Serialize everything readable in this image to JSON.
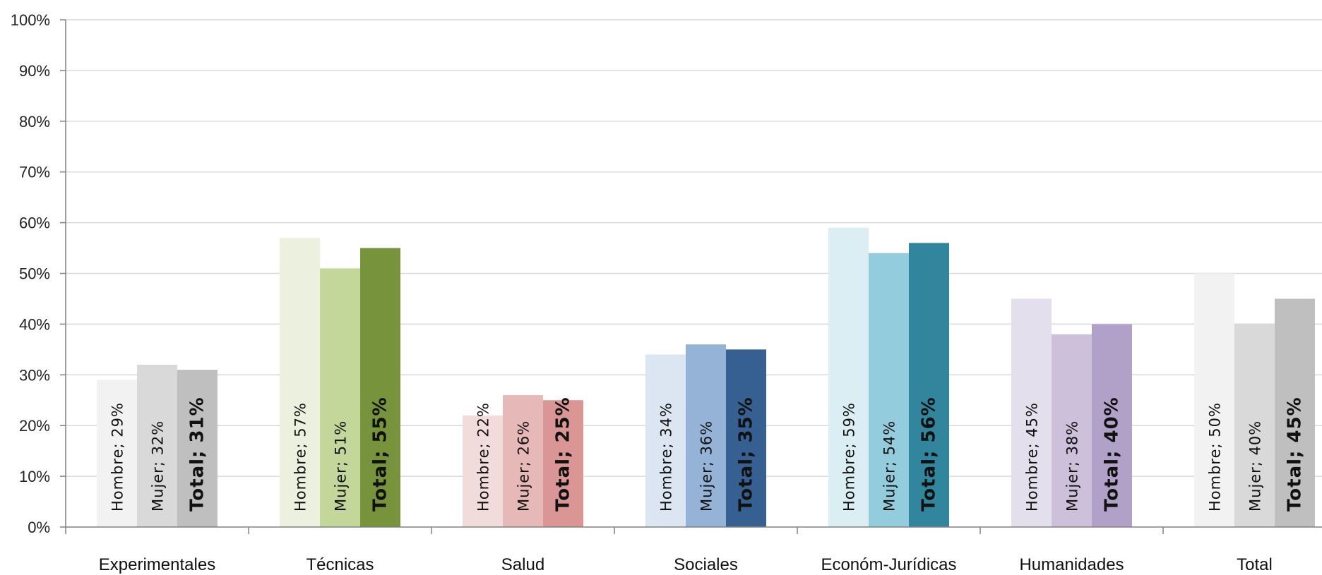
{
  "chart_data": {
    "type": "bar",
    "categories": [
      "Experimentales",
      "Técnicas",
      "Salud",
      "Sociales",
      "Económ-Jurídicas",
      "Humanidades",
      "Total"
    ],
    "series": [
      {
        "name": "Hombre",
        "values": [
          29,
          57,
          22,
          34,
          59,
          45,
          50
        ]
      },
      {
        "name": "Mujer",
        "values": [
          32,
          51,
          26,
          36,
          54,
          38,
          40
        ]
      },
      {
        "name": "Total",
        "values": [
          31,
          55,
          25,
          35,
          56,
          40,
          45
        ]
      }
    ],
    "bar_labels": [
      [
        "Hombre; 29%",
        "Mujer; 32%",
        "Total; 31%"
      ],
      [
        "Hombre; 57%",
        "Mujer; 51%",
        "Total; 55%"
      ],
      [
        "Hombre; 22%",
        "Mujer; 26%",
        "Total; 25%"
      ],
      [
        "Hombre; 34%",
        "Mujer; 36%",
        "Total; 35%"
      ],
      [
        "Hombre; 59%",
        "Mujer; 54%",
        "Total; 56%"
      ],
      [
        "Hombre; 45%",
        "Mujer; 38%",
        "Total; 40%"
      ],
      [
        "Hombre; 50%",
        "Mujer; 40%",
        "Total; 45%"
      ]
    ],
    "y_ticks": [
      "0%",
      "10%",
      "20%",
      "30%",
      "40%",
      "50%",
      "60%",
      "70%",
      "80%",
      "90%",
      "100%"
    ],
    "ylim": [
      0,
      100
    ],
    "grid": true,
    "colors": [
      [
        "#f2f2f2",
        "#d9d9d9",
        "#bfbfbf"
      ],
      [
        "#ebf1de",
        "#c4d79b",
        "#77933c"
      ],
      [
        "#f2dcdb",
        "#e6b9b8",
        "#d99694"
      ],
      [
        "#dce6f2",
        "#95b3d7",
        "#366092"
      ],
      [
        "#daeef3",
        "#93cddd",
        "#31859c"
      ],
      [
        "#e4dfec",
        "#ccc0da",
        "#b1a0c7"
      ],
      [
        "#f2f2f2",
        "#d9d9d9",
        "#bfbfbf"
      ]
    ]
  }
}
